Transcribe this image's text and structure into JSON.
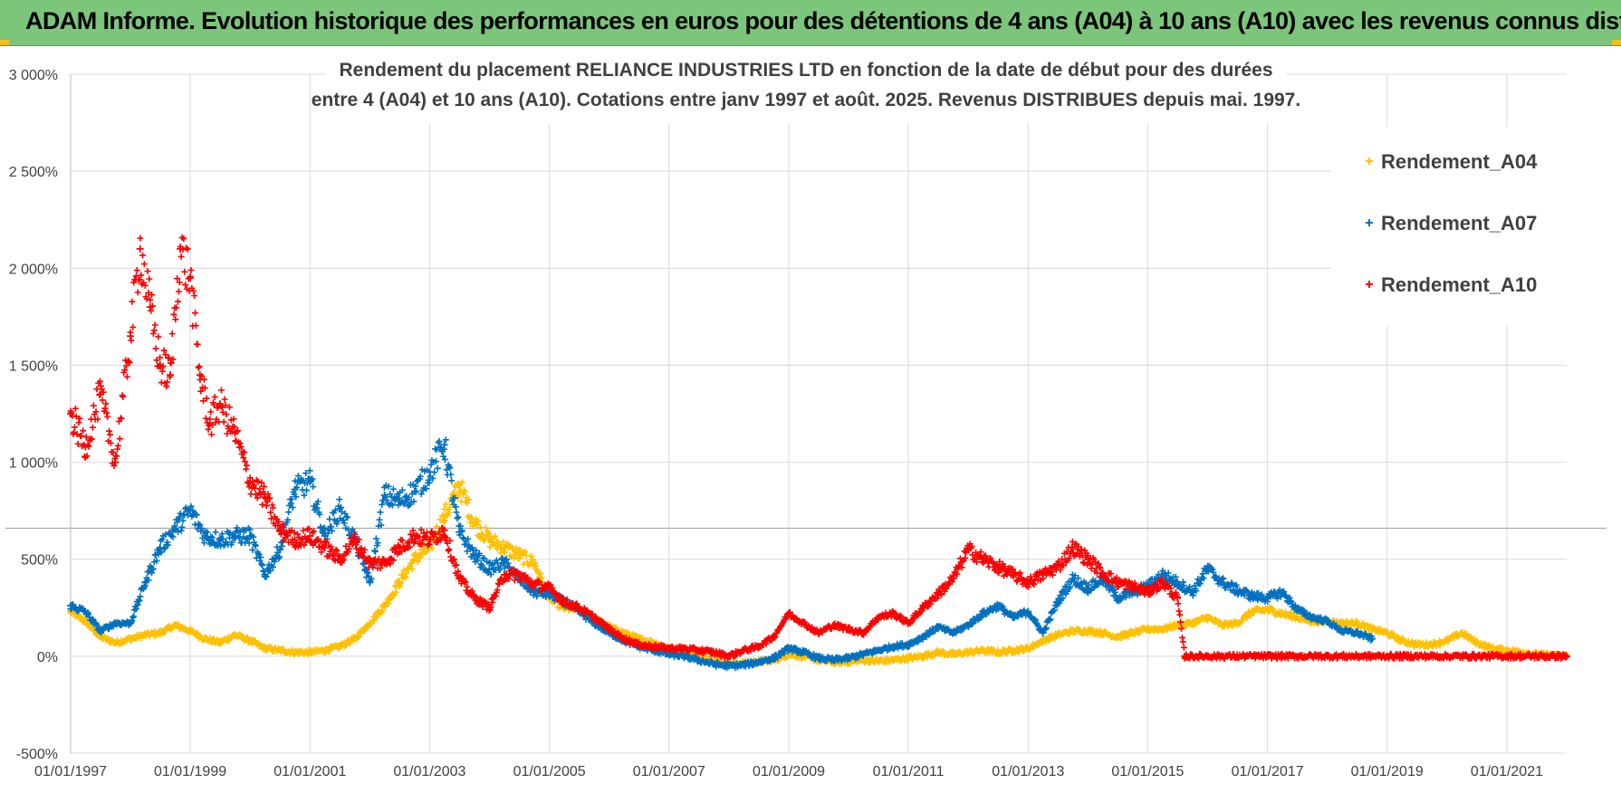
{
  "banner": {
    "title": "ADAM Informe. Evolution historique des performances en euros pour des détentions de 4 ans (A04) à 10 ans (A10) avec les revenus connus distribués"
  },
  "chart_data": {
    "type": "scatter",
    "title_line1": "Rendement du placement RELIANCE INDUSTRIES LTD en fonction de la date de début pour des durées",
    "title_line2": "entre 4 (A04) et 10 ans (A10). Cotations entre janv 1997 et août. 2025. Revenus DISTRIBUES depuis mai. 1997.",
    "xlabel": "",
    "ylabel": "",
    "xlim": [
      "01/01/1997",
      "01/01/2022"
    ],
    "ylim": [
      -500,
      3000
    ],
    "y_ticks": [
      -500,
      0,
      500,
      1000,
      1500,
      2000,
      2500,
      3000
    ],
    "y_tick_labels": [
      "-500%",
      "0%",
      "500%",
      "1 000%",
      "1 500%",
      "2 000%",
      "2 500%",
      "3 000%"
    ],
    "x_ticks": [
      "01/01/1997",
      "01/01/1999",
      "01/01/2001",
      "01/01/2003",
      "01/01/2005",
      "01/01/2007",
      "01/01/2009",
      "01/01/2011",
      "01/01/2013",
      "01/01/2015",
      "01/01/2017",
      "01/01/2019",
      "01/01/2021"
    ],
    "grid": true,
    "legend_position": "top-right",
    "marker": "+",
    "series": [
      {
        "name": "Rendement_A04",
        "color": "#ffc000",
        "points": [
          [
            "1997-01-01",
            230
          ],
          [
            "1997-04-01",
            180
          ],
          [
            "1997-07-01",
            100
          ],
          [
            "1997-10-01",
            70
          ],
          [
            "1998-01-01",
            90
          ],
          [
            "1998-04-01",
            110
          ],
          [
            "1998-07-01",
            120
          ],
          [
            "1998-10-01",
            160
          ],
          [
            "1999-01-01",
            130
          ],
          [
            "1999-04-01",
            90
          ],
          [
            "1999-07-01",
            70
          ],
          [
            "1999-10-01",
            110
          ],
          [
            "2000-01-01",
            80
          ],
          [
            "2000-04-01",
            40
          ],
          [
            "2000-07-01",
            30
          ],
          [
            "2000-10-01",
            20
          ],
          [
            "2001-01-01",
            20
          ],
          [
            "2001-04-01",
            30
          ],
          [
            "2001-07-01",
            50
          ],
          [
            "2001-10-01",
            90
          ],
          [
            "2002-01-01",
            170
          ],
          [
            "2002-04-01",
            260
          ],
          [
            "2002-07-01",
            380
          ],
          [
            "2002-10-01",
            500
          ],
          [
            "2003-01-01",
            560
          ],
          [
            "2003-04-01",
            720
          ],
          [
            "2003-07-01",
            880
          ],
          [
            "2003-10-01",
            690
          ],
          [
            "2004-01-01",
            600
          ],
          [
            "2004-04-01",
            560
          ],
          [
            "2004-07-01",
            520
          ],
          [
            "2004-10-01",
            480
          ],
          [
            "2005-01-01",
            300
          ],
          [
            "2005-04-01",
            250
          ],
          [
            "2005-07-01",
            240
          ],
          [
            "2005-10-01",
            200
          ],
          [
            "2006-01-01",
            150
          ],
          [
            "2006-04-01",
            120
          ],
          [
            "2006-07-01",
            90
          ],
          [
            "2006-10-01",
            70
          ],
          [
            "2007-01-01",
            40
          ],
          [
            "2007-04-01",
            20
          ],
          [
            "2007-07-01",
            10
          ],
          [
            "2007-10-01",
            -20
          ],
          [
            "2008-01-01",
            -40
          ],
          [
            "2008-04-01",
            -35
          ],
          [
            "2008-07-01",
            -30
          ],
          [
            "2008-10-01",
            -20
          ],
          [
            "2009-01-01",
            10
          ],
          [
            "2009-04-01",
            0
          ],
          [
            "2009-07-01",
            -20
          ],
          [
            "2009-10-01",
            -30
          ],
          [
            "2010-01-01",
            -30
          ],
          [
            "2010-04-01",
            -20
          ],
          [
            "2010-07-01",
            -25
          ],
          [
            "2010-10-01",
            -20
          ],
          [
            "2011-01-01",
            -10
          ],
          [
            "2011-04-01",
            0
          ],
          [
            "2011-07-01",
            20
          ],
          [
            "2011-10-01",
            10
          ],
          [
            "2012-01-01",
            20
          ],
          [
            "2012-04-01",
            30
          ],
          [
            "2012-07-01",
            20
          ],
          [
            "2012-10-01",
            30
          ],
          [
            "2013-01-01",
            40
          ],
          [
            "2013-04-01",
            80
          ],
          [
            "2013-07-01",
            110
          ],
          [
            "2013-10-01",
            130
          ],
          [
            "2014-01-01",
            130
          ],
          [
            "2014-04-01",
            120
          ],
          [
            "2014-07-01",
            100
          ],
          [
            "2014-10-01",
            120
          ],
          [
            "2015-01-01",
            140
          ],
          [
            "2015-04-01",
            140
          ],
          [
            "2015-07-01",
            160
          ],
          [
            "2015-10-01",
            170
          ],
          [
            "2016-01-01",
            200
          ],
          [
            "2016-04-01",
            160
          ],
          [
            "2016-07-01",
            170
          ],
          [
            "2016-10-01",
            230
          ],
          [
            "2017-01-01",
            240
          ],
          [
            "2017-04-01",
            220
          ],
          [
            "2017-07-01",
            200
          ],
          [
            "2017-10-01",
            180
          ],
          [
            "2018-01-01",
            180
          ],
          [
            "2018-04-01",
            170
          ],
          [
            "2018-07-01",
            170
          ],
          [
            "2018-10-01",
            140
          ],
          [
            "2019-01-01",
            120
          ],
          [
            "2019-04-01",
            80
          ],
          [
            "2019-07-01",
            60
          ],
          [
            "2019-10-01",
            60
          ],
          [
            "2020-01-01",
            80
          ],
          [
            "2020-04-01",
            120
          ],
          [
            "2020-07-01",
            70
          ],
          [
            "2020-10-01",
            40
          ],
          [
            "2021-01-01",
            30
          ],
          [
            "2021-04-01",
            20
          ],
          [
            "2021-07-01",
            10
          ],
          [
            "2021-10-01",
            5
          ],
          [
            "2022-01-01",
            0
          ]
        ]
      },
      {
        "name": "Rendement_A07",
        "color": "#0070c0",
        "points": [
          [
            "1997-01-01",
            260
          ],
          [
            "1997-04-01",
            230
          ],
          [
            "1997-07-01",
            130
          ],
          [
            "1997-10-01",
            170
          ],
          [
            "1998-01-01",
            170
          ],
          [
            "1998-04-01",
            380
          ],
          [
            "1998-07-01",
            560
          ],
          [
            "1998-10-01",
            660
          ],
          [
            "1999-01-01",
            750
          ],
          [
            "1999-04-01",
            620
          ],
          [
            "1999-07-01",
            600
          ],
          [
            "1999-10-01",
            620
          ],
          [
            "2000-01-01",
            620
          ],
          [
            "2000-04-01",
            420
          ],
          [
            "2000-07-01",
            550
          ],
          [
            "2000-10-01",
            860
          ],
          [
            "2001-01-01",
            900
          ],
          [
            "2001-04-01",
            620
          ],
          [
            "2001-07-01",
            760
          ],
          [
            "2001-10-01",
            600
          ],
          [
            "2002-01-01",
            380
          ],
          [
            "2002-04-01",
            830
          ],
          [
            "2002-07-01",
            800
          ],
          [
            "2002-10-01",
            850
          ],
          [
            "2003-01-01",
            950
          ],
          [
            "2003-04-01",
            1090
          ],
          [
            "2003-07-01",
            640
          ],
          [
            "2003-10-01",
            520
          ],
          [
            "2004-01-01",
            450
          ],
          [
            "2004-04-01",
            480
          ],
          [
            "2004-07-01",
            400
          ],
          [
            "2004-10-01",
            330
          ],
          [
            "2005-01-01",
            320
          ],
          [
            "2005-04-01",
            280
          ],
          [
            "2005-07-01",
            230
          ],
          [
            "2005-10-01",
            170
          ],
          [
            "2006-01-01",
            120
          ],
          [
            "2006-04-01",
            80
          ],
          [
            "2006-07-01",
            50
          ],
          [
            "2006-10-01",
            30
          ],
          [
            "2007-01-01",
            10
          ],
          [
            "2007-04-01",
            0
          ],
          [
            "2007-07-01",
            -20
          ],
          [
            "2007-10-01",
            -40
          ],
          [
            "2008-01-01",
            -50
          ],
          [
            "2008-04-01",
            -45
          ],
          [
            "2008-07-01",
            -30
          ],
          [
            "2008-10-01",
            -10
          ],
          [
            "2009-01-01",
            40
          ],
          [
            "2009-04-01",
            20
          ],
          [
            "2009-07-01",
            -10
          ],
          [
            "2009-10-01",
            -20
          ],
          [
            "2010-01-01",
            -10
          ],
          [
            "2010-04-01",
            10
          ],
          [
            "2010-07-01",
            30
          ],
          [
            "2010-10-01",
            50
          ],
          [
            "2011-01-01",
            60
          ],
          [
            "2011-04-01",
            100
          ],
          [
            "2011-07-01",
            150
          ],
          [
            "2011-10-01",
            120
          ],
          [
            "2012-01-01",
            160
          ],
          [
            "2012-04-01",
            220
          ],
          [
            "2012-07-01",
            260
          ],
          [
            "2012-10-01",
            200
          ],
          [
            "2013-01-01",
            230
          ],
          [
            "2013-04-01",
            120
          ],
          [
            "2013-07-01",
            280
          ],
          [
            "2013-10-01",
            400
          ],
          [
            "2014-01-01",
            350
          ],
          [
            "2014-04-01",
            400
          ],
          [
            "2014-07-01",
            300
          ],
          [
            "2014-10-01",
            330
          ],
          [
            "2015-01-01",
            360
          ],
          [
            "2015-04-01",
            420
          ],
          [
            "2015-07-01",
            380
          ],
          [
            "2015-10-01",
            330
          ],
          [
            "2016-01-01",
            450
          ],
          [
            "2016-04-01",
            380
          ],
          [
            "2016-07-01",
            340
          ],
          [
            "2016-10-01",
            310
          ],
          [
            "2017-01-01",
            300
          ],
          [
            "2017-04-01",
            330
          ],
          [
            "2017-07-01",
            240
          ],
          [
            "2017-10-01",
            200
          ],
          [
            "2018-01-01",
            180
          ],
          [
            "2018-04-01",
            130
          ],
          [
            "2018-07-01",
            120
          ],
          [
            "2018-10-01",
            90
          ]
        ]
      },
      {
        "name": "Rendement_A10",
        "color": "#ff0000",
        "points": [
          [
            "1997-01-01",
            1250
          ],
          [
            "1997-04-01",
            1080
          ],
          [
            "1997-07-01",
            1350
          ],
          [
            "1997-10-01",
            1000
          ],
          [
            "1998-01-01",
            1650
          ],
          [
            "1998-03-01",
            2100
          ],
          [
            "1998-05-01",
            1800
          ],
          [
            "1998-07-01",
            1500
          ],
          [
            "1998-09-01",
            1450
          ],
          [
            "1998-11-01",
            2100
          ],
          [
            "1999-01-01",
            1950
          ],
          [
            "1999-03-01",
            1450
          ],
          [
            "1999-05-01",
            1200
          ],
          [
            "1999-07-01",
            1300
          ],
          [
            "1999-10-01",
            1150
          ],
          [
            "2000-01-01",
            900
          ],
          [
            "2000-04-01",
            820
          ],
          [
            "2000-07-01",
            650
          ],
          [
            "2000-10-01",
            600
          ],
          [
            "2001-01-01",
            620
          ],
          [
            "2001-04-01",
            560
          ],
          [
            "2001-07-01",
            500
          ],
          [
            "2001-10-01",
            600
          ],
          [
            "2002-01-01",
            480
          ],
          [
            "2002-04-01",
            480
          ],
          [
            "2002-07-01",
            560
          ],
          [
            "2002-10-01",
            620
          ],
          [
            "2003-01-01",
            600
          ],
          [
            "2003-04-01",
            650
          ],
          [
            "2003-07-01",
            400
          ],
          [
            "2003-10-01",
            300
          ],
          [
            "2004-01-01",
            250
          ],
          [
            "2004-04-01",
            420
          ],
          [
            "2004-07-01",
            420
          ],
          [
            "2004-10-01",
            370
          ],
          [
            "2005-01-01",
            350
          ],
          [
            "2005-04-01",
            280
          ],
          [
            "2005-07-01",
            250
          ],
          [
            "2005-10-01",
            200
          ],
          [
            "2006-01-01",
            140
          ],
          [
            "2006-04-01",
            90
          ],
          [
            "2006-07-01",
            60
          ],
          [
            "2006-10-01",
            50
          ],
          [
            "2007-01-01",
            40
          ],
          [
            "2007-04-01",
            40
          ],
          [
            "2007-07-01",
            30
          ],
          [
            "2007-10-01",
            20
          ],
          [
            "2008-01-01",
            0
          ],
          [
            "2008-04-01",
            30
          ],
          [
            "2008-07-01",
            50
          ],
          [
            "2008-10-01",
            100
          ],
          [
            "2009-01-01",
            220
          ],
          [
            "2009-04-01",
            170
          ],
          [
            "2009-07-01",
            120
          ],
          [
            "2009-10-01",
            160
          ],
          [
            "2010-01-01",
            140
          ],
          [
            "2010-04-01",
            120
          ],
          [
            "2010-07-01",
            200
          ],
          [
            "2010-10-01",
            220
          ],
          [
            "2011-01-01",
            170
          ],
          [
            "2011-04-01",
            250
          ],
          [
            "2011-07-01",
            320
          ],
          [
            "2011-10-01",
            400
          ],
          [
            "2012-01-01",
            550
          ],
          [
            "2012-04-01",
            500
          ],
          [
            "2012-07-01",
            460
          ],
          [
            "2012-10-01",
            420
          ],
          [
            "2013-01-01",
            380
          ],
          [
            "2013-04-01",
            420
          ],
          [
            "2013-07-01",
            460
          ],
          [
            "2013-10-01",
            560
          ],
          [
            "2014-01-01",
            500
          ],
          [
            "2014-04-01",
            430
          ],
          [
            "2014-07-01",
            380
          ],
          [
            "2014-10-01",
            360
          ],
          [
            "2015-01-01",
            330
          ],
          [
            "2015-04-01",
            380
          ],
          [
            "2015-07-01",
            300
          ],
          [
            "2015-08-15",
            0
          ],
          [
            "2016-01-01",
            0
          ],
          [
            "2017-01-01",
            0
          ],
          [
            "2018-01-01",
            0
          ],
          [
            "2019-01-01",
            0
          ],
          [
            "2020-01-01",
            0
          ],
          [
            "2021-01-01",
            0
          ],
          [
            "2022-01-01",
            0
          ]
        ]
      }
    ]
  }
}
